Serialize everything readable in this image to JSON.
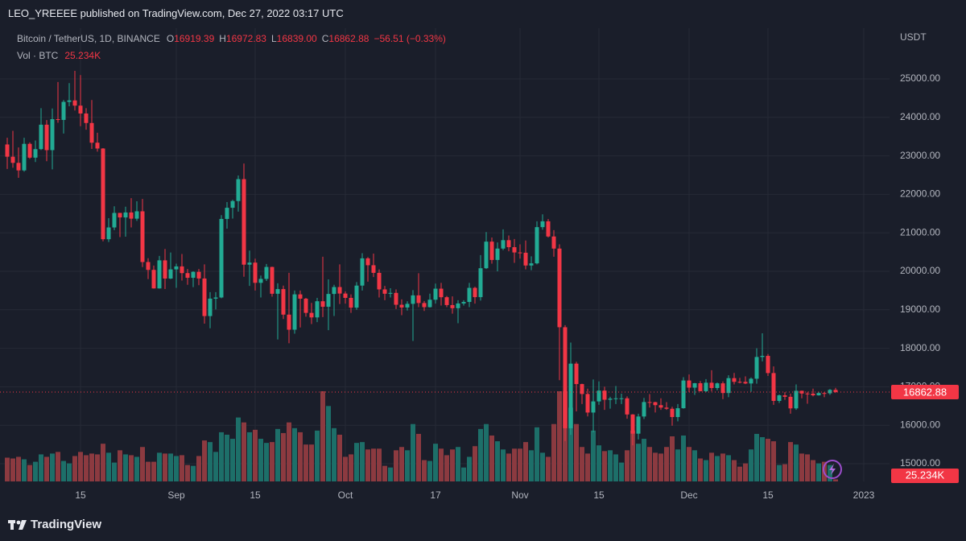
{
  "publisher": "LEO_YREEEE published on TradingView.com, Dec 27, 2022 03:17 UTC",
  "brand": "TradingView",
  "chart_data": {
    "type": "candlestick",
    "legend": {
      "symbol": "Bitcoin / TetherUS, 1D, BINANCE",
      "items": [
        {
          "key": "O",
          "value": "16919.39"
        },
        {
          "key": "H",
          "value": "16972.83"
        },
        {
          "key": "L",
          "value": "16839.00"
        },
        {
          "key": "C",
          "value": "16862.88"
        }
      ],
      "change": "−56.51 (−0.33%)",
      "volume_name": "Vol · BTC"
    },
    "currency": "USDT",
    "up_color": "#22ab94",
    "down_color": "#f23645",
    "up_volume_color": "#1d6f69",
    "down_volume_color": "#8c3a40",
    "grid": true,
    "x": [
      "2022-08-02",
      "2022-08-03",
      "2022-08-04",
      "2022-08-05",
      "2022-08-06",
      "2022-08-07",
      "2022-08-08",
      "2022-08-09",
      "2022-08-10",
      "2022-08-11",
      "2022-08-12",
      "2022-08-13",
      "2022-08-14",
      "2022-08-15",
      "2022-08-16",
      "2022-08-17",
      "2022-08-18",
      "2022-08-19",
      "2022-08-20",
      "2022-08-21",
      "2022-08-22",
      "2022-08-23",
      "2022-08-24",
      "2022-08-25",
      "2022-08-26",
      "2022-08-27",
      "2022-08-28",
      "2022-08-29",
      "2022-08-30",
      "2022-08-31",
      "2022-09-01",
      "2022-09-02",
      "2022-09-03",
      "2022-09-04",
      "2022-09-05",
      "2022-09-06",
      "2022-09-07",
      "2022-09-08",
      "2022-09-09",
      "2022-09-10",
      "2022-09-11",
      "2022-09-12",
      "2022-09-13",
      "2022-09-14",
      "2022-09-15",
      "2022-09-16",
      "2022-09-17",
      "2022-09-18",
      "2022-09-19",
      "2022-09-20",
      "2022-09-21",
      "2022-09-22",
      "2022-09-23",
      "2022-09-24",
      "2022-09-25",
      "2022-09-26",
      "2022-09-27",
      "2022-09-28",
      "2022-09-29",
      "2022-09-30",
      "2022-10-01",
      "2022-10-02",
      "2022-10-03",
      "2022-10-04",
      "2022-10-05",
      "2022-10-06",
      "2022-10-07",
      "2022-10-08",
      "2022-10-09",
      "2022-10-10",
      "2022-10-11",
      "2022-10-12",
      "2022-10-13",
      "2022-10-14",
      "2022-10-15",
      "2022-10-16",
      "2022-10-17",
      "2022-10-18",
      "2022-10-19",
      "2022-10-20",
      "2022-10-21",
      "2022-10-22",
      "2022-10-23",
      "2022-10-24",
      "2022-10-25",
      "2022-10-26",
      "2022-10-27",
      "2022-10-28",
      "2022-10-29",
      "2022-10-30",
      "2022-10-31",
      "2022-11-01",
      "2022-11-02",
      "2022-11-03",
      "2022-11-04",
      "2022-11-05",
      "2022-11-06",
      "2022-11-07",
      "2022-11-08",
      "2022-11-09",
      "2022-11-10",
      "2022-11-11",
      "2022-11-12",
      "2022-11-13",
      "2022-11-14",
      "2022-11-15",
      "2022-11-16",
      "2022-11-17",
      "2022-11-18",
      "2022-11-19",
      "2022-11-20",
      "2022-11-21",
      "2022-11-22",
      "2022-11-23",
      "2022-11-24",
      "2022-11-25",
      "2022-11-26",
      "2022-11-27",
      "2022-11-28",
      "2022-11-29",
      "2022-11-30",
      "2022-12-01",
      "2022-12-02",
      "2022-12-03",
      "2022-12-04",
      "2022-12-05",
      "2022-12-06",
      "2022-12-07",
      "2022-12-08",
      "2022-12-09",
      "2022-12-10",
      "2022-12-11",
      "2022-12-12",
      "2022-12-13",
      "2022-12-14",
      "2022-12-15",
      "2022-12-16",
      "2022-12-17",
      "2022-12-18",
      "2022-12-19",
      "2022-12-20",
      "2022-12-21",
      "2022-12-22",
      "2022-12-23",
      "2022-12-24",
      "2022-12-25",
      "2022-12-26",
      "2022-12-27"
    ],
    "ohlc": [
      [
        23296,
        23470,
        22660,
        22978
      ],
      [
        22978,
        23650,
        22690,
        22818
      ],
      [
        22818,
        23220,
        22430,
        22622
      ],
      [
        22622,
        23470,
        22590,
        23312
      ],
      [
        23312,
        23350,
        22920,
        22954
      ],
      [
        22954,
        23400,
        22840,
        23175
      ],
      [
        23175,
        24240,
        23150,
        23810
      ],
      [
        23810,
        23930,
        22860,
        23149
      ],
      [
        23149,
        24230,
        22650,
        23954
      ],
      [
        23954,
        24920,
        23860,
        23934
      ],
      [
        23934,
        24450,
        23580,
        24403
      ],
      [
        24403,
        24890,
        24290,
        24441
      ],
      [
        24441,
        25210,
        24180,
        24305
      ],
      [
        24305,
        25100,
        23770,
        24101
      ],
      [
        24101,
        24240,
        23680,
        23854
      ],
      [
        23854,
        24450,
        23180,
        23342
      ],
      [
        23342,
        23600,
        23110,
        23191
      ],
      [
        23191,
        23200,
        20780,
        20834
      ],
      [
        20834,
        21380,
        20760,
        21140
      ],
      [
        21140,
        21690,
        21070,
        21517
      ],
      [
        21517,
        21520,
        20890,
        21400
      ],
      [
        21400,
        21680,
        20900,
        21529
      ],
      [
        21529,
        21900,
        21140,
        21368
      ],
      [
        21368,
        21820,
        21310,
        21559
      ],
      [
        21559,
        21880,
        20110,
        20241
      ],
      [
        20241,
        20340,
        19800,
        20037
      ],
      [
        20037,
        20150,
        19550,
        19555
      ],
      [
        19555,
        20400,
        19550,
        20285
      ],
      [
        20285,
        20580,
        19540,
        19812
      ],
      [
        19812,
        20490,
        19800,
        20050
      ],
      [
        20050,
        20200,
        19570,
        20127
      ],
      [
        20127,
        20450,
        19760,
        19953
      ],
      [
        19953,
        20060,
        19650,
        19832
      ],
      [
        19832,
        20000,
        19590,
        19986
      ],
      [
        19986,
        20060,
        19640,
        19813
      ],
      [
        19813,
        20180,
        18640,
        18837
      ],
      [
        18837,
        19460,
        18520,
        19290
      ],
      [
        19290,
        19460,
        19010,
        19320
      ],
      [
        19320,
        21460,
        19300,
        21361
      ],
      [
        21361,
        21800,
        21110,
        21651
      ],
      [
        21651,
        21860,
        21370,
        21826
      ],
      [
        21826,
        22490,
        21550,
        22395
      ],
      [
        22395,
        22800,
        19860,
        20173
      ],
      [
        20173,
        20540,
        19620,
        20226
      ],
      [
        20226,
        20330,
        19500,
        19701
      ],
      [
        19701,
        19890,
        19320,
        19803
      ],
      [
        19803,
        20190,
        19750,
        20113
      ],
      [
        20113,
        20120,
        19340,
        19417
      ],
      [
        19417,
        19690,
        18230,
        19538
      ],
      [
        19538,
        19630,
        18760,
        18875
      ],
      [
        18875,
        19960,
        18130,
        18483
      ],
      [
        18483,
        19500,
        18380,
        19401
      ],
      [
        19401,
        19500,
        18540,
        19289
      ],
      [
        19289,
        19310,
        18820,
        18920
      ],
      [
        18920,
        19180,
        18630,
        18802
      ],
      [
        18802,
        19310,
        18680,
        19222
      ],
      [
        19222,
        20380,
        18810,
        19079
      ],
      [
        19079,
        19790,
        18470,
        19412
      ],
      [
        19412,
        19650,
        18840,
        19591
      ],
      [
        19591,
        20180,
        19150,
        19422
      ],
      [
        19422,
        19480,
        19160,
        19310
      ],
      [
        19310,
        19400,
        18920,
        19056
      ],
      [
        19056,
        19720,
        19000,
        19629
      ],
      [
        19629,
        20470,
        19500,
        20337
      ],
      [
        20337,
        20370,
        19730,
        20158
      ],
      [
        20158,
        20460,
        19850,
        19960
      ],
      [
        19960,
        20050,
        19320,
        19530
      ],
      [
        19530,
        19620,
        19250,
        19417
      ],
      [
        19417,
        19560,
        19320,
        19439
      ],
      [
        19439,
        19530,
        19020,
        19131
      ],
      [
        19131,
        19270,
        18860,
        19060
      ],
      [
        19060,
        19220,
        18980,
        19155
      ],
      [
        19155,
        19510,
        18190,
        19375
      ],
      [
        19375,
        19950,
        19070,
        19176
      ],
      [
        19176,
        19230,
        18970,
        19069
      ],
      [
        19069,
        19420,
        19060,
        19262
      ],
      [
        19262,
        19680,
        19160,
        19549
      ],
      [
        19549,
        19700,
        19110,
        19327
      ],
      [
        19327,
        19360,
        19070,
        19123
      ],
      [
        19123,
        19350,
        18900,
        19041
      ],
      [
        19041,
        19250,
        18650,
        19164
      ],
      [
        19164,
        19250,
        19110,
        19204
      ],
      [
        19204,
        19700,
        19070,
        19570
      ],
      [
        19570,
        19600,
        19160,
        19329
      ],
      [
        19329,
        20420,
        19240,
        20080
      ],
      [
        20080,
        21020,
        20060,
        20771
      ],
      [
        20771,
        20880,
        20200,
        20295
      ],
      [
        20295,
        20750,
        20000,
        20591
      ],
      [
        20591,
        21090,
        20550,
        20809
      ],
      [
        20809,
        20930,
        20520,
        20627
      ],
      [
        20627,
        20840,
        20220,
        20490
      ],
      [
        20490,
        20700,
        20330,
        20483
      ],
      [
        20483,
        20800,
        20050,
        20151
      ],
      [
        20151,
        20390,
        20030,
        20207
      ],
      [
        20207,
        21300,
        20180,
        21148
      ],
      [
        21148,
        21480,
        21080,
        21299
      ],
      [
        21299,
        21360,
        20880,
        20905
      ],
      [
        20905,
        21070,
        20380,
        20591
      ],
      [
        20591,
        20700,
        17170,
        18547
      ],
      [
        18547,
        18600,
        15590,
        15922
      ],
      [
        15922,
        18150,
        15750,
        17601
      ],
      [
        17601,
        17650,
        16360,
        17070
      ],
      [
        17070,
        17080,
        16550,
        16812
      ],
      [
        16812,
        16950,
        16230,
        16330
      ],
      [
        16330,
        17190,
        15820,
        16619
      ],
      [
        16619,
        17140,
        16530,
        16900
      ],
      [
        16900,
        17000,
        16400,
        16663
      ],
      [
        16663,
        16740,
        16430,
        16692
      ],
      [
        16692,
        17020,
        16550,
        16700
      ],
      [
        16700,
        16820,
        16550,
        16700
      ],
      [
        16700,
        16750,
        16170,
        16280
      ],
      [
        16280,
        16290,
        15480,
        15781
      ],
      [
        15781,
        16300,
        15630,
        16227
      ],
      [
        16227,
        16710,
        16160,
        16603
      ],
      [
        16603,
        16810,
        16460,
        16599
      ],
      [
        16599,
        16610,
        16330,
        16522
      ],
      [
        16522,
        16700,
        16400,
        16458
      ],
      [
        16458,
        16600,
        16400,
        16428
      ],
      [
        16428,
        16480,
        15990,
        16213
      ],
      [
        16213,
        16550,
        16100,
        16442
      ],
      [
        16442,
        17250,
        16430,
        17163
      ],
      [
        17163,
        17320,
        16860,
        16977
      ],
      [
        16977,
        17100,
        16790,
        17092
      ],
      [
        17092,
        17150,
        16880,
        16885
      ],
      [
        16885,
        17200,
        16860,
        17105
      ],
      [
        17105,
        17430,
        16880,
        16967
      ],
      [
        16967,
        17110,
        16910,
        17089
      ],
      [
        17089,
        17140,
        16680,
        16837
      ],
      [
        16837,
        17300,
        16730,
        17224
      ],
      [
        17224,
        17360,
        17060,
        17128
      ],
      [
        17128,
        17230,
        17090,
        17127
      ],
      [
        17127,
        17270,
        17070,
        17085
      ],
      [
        17085,
        17240,
        16870,
        17209
      ],
      [
        17209,
        18000,
        17080,
        17774
      ],
      [
        17774,
        18390,
        17660,
        17803
      ],
      [
        17803,
        17850,
        17280,
        17356
      ],
      [
        17356,
        17530,
        16530,
        16633
      ],
      [
        16633,
        16800,
        16580,
        16777
      ],
      [
        16777,
        16860,
        16660,
        16739
      ],
      [
        16739,
        16820,
        16300,
        16438
      ],
      [
        16438,
        17060,
        16400,
        16895
      ],
      [
        16895,
        16900,
        16700,
        16825
      ],
      [
        16825,
        16870,
        16560,
        16821
      ],
      [
        16821,
        16950,
        16750,
        16778
      ],
      [
        16778,
        16870,
        16770,
        16837
      ],
      [
        16837,
        16860,
        16730,
        16830
      ],
      [
        16830,
        16940,
        16790,
        16919
      ],
      [
        16919.39,
        16972.83,
        16839.0,
        16862.88
      ]
    ],
    "volume": [
      290,
      280,
      300,
      270,
      200,
      240,
      330,
      300,
      340,
      360,
      250,
      220,
      310,
      360,
      320,
      340,
      330,
      460,
      350,
      230,
      380,
      330,
      320,
      300,
      420,
      240,
      240,
      350,
      340,
      340,
      310,
      320,
      200,
      190,
      310,
      500,
      480,
      360,
      600,
      570,
      520,
      780,
      720,
      600,
      630,
      520,
      470,
      480,
      640,
      590,
      720,
      650,
      600,
      450,
      450,
      620,
      1100,
      920,
      650,
      570,
      300,
      330,
      470,
      480,
      390,
      400,
      400,
      190,
      170,
      380,
      420,
      380,
      700,
      580,
      260,
      250,
      460,
      400,
      320,
      390,
      420,
      170,
      300,
      430,
      640,
      700,
      560,
      490,
      390,
      340,
      400,
      400,
      480,
      380,
      660,
      350,
      300,
      700,
      1100,
      1100,
      900,
      700,
      420,
      340,
      620,
      440,
      370,
      380,
      330,
      230,
      380,
      620,
      460,
      520,
      420,
      350,
      340,
      420,
      550,
      390,
      560,
      420,
      380,
      280,
      260,
      350,
      310,
      340,
      320,
      260,
      180,
      220,
      390,
      580,
      540,
      520,
      490,
      200,
      210,
      480,
      450,
      340,
      330,
      260,
      220,
      240,
      200,
      25.234
    ],
    "last_volume_label": "25.234K",
    "last_price": 16862.88,
    "xlim": [
      "2022-08-01",
      "2023-01-06"
    ],
    "xticks": [
      {
        "value": "2022-08-15",
        "label": "15"
      },
      {
        "value": "2022-09-01",
        "label": "Sep"
      },
      {
        "value": "2022-09-15",
        "label": "15"
      },
      {
        "value": "2022-10-01",
        "label": "Oct"
      },
      {
        "value": "2022-10-17",
        "label": "17"
      },
      {
        "value": "2022-11-01",
        "label": "Nov"
      },
      {
        "value": "2022-11-15",
        "label": "15"
      },
      {
        "value": "2022-12-01",
        "label": "Dec"
      },
      {
        "value": "2022-12-15",
        "label": "15"
      },
      {
        "value": "2023-01-01",
        "label": "2023"
      }
    ],
    "ylim": [
      14540,
      26318
    ],
    "yticks": [
      {
        "value": 15000,
        "label": "15000.00"
      },
      {
        "value": 16000,
        "label": "16000.00"
      },
      {
        "value": 17000,
        "label": "17000.00"
      },
      {
        "value": 18000,
        "label": "18000.00"
      },
      {
        "value": 19000,
        "label": "19000.00"
      },
      {
        "value": 20000,
        "label": "20000.00"
      },
      {
        "value": 21000,
        "label": "21000.00"
      },
      {
        "value": 22000,
        "label": "22000.00"
      },
      {
        "value": 23000,
        "label": "23000.00"
      },
      {
        "value": 24000,
        "label": "24000.00"
      },
      {
        "value": 25000,
        "label": "25000.00"
      }
    ]
  }
}
